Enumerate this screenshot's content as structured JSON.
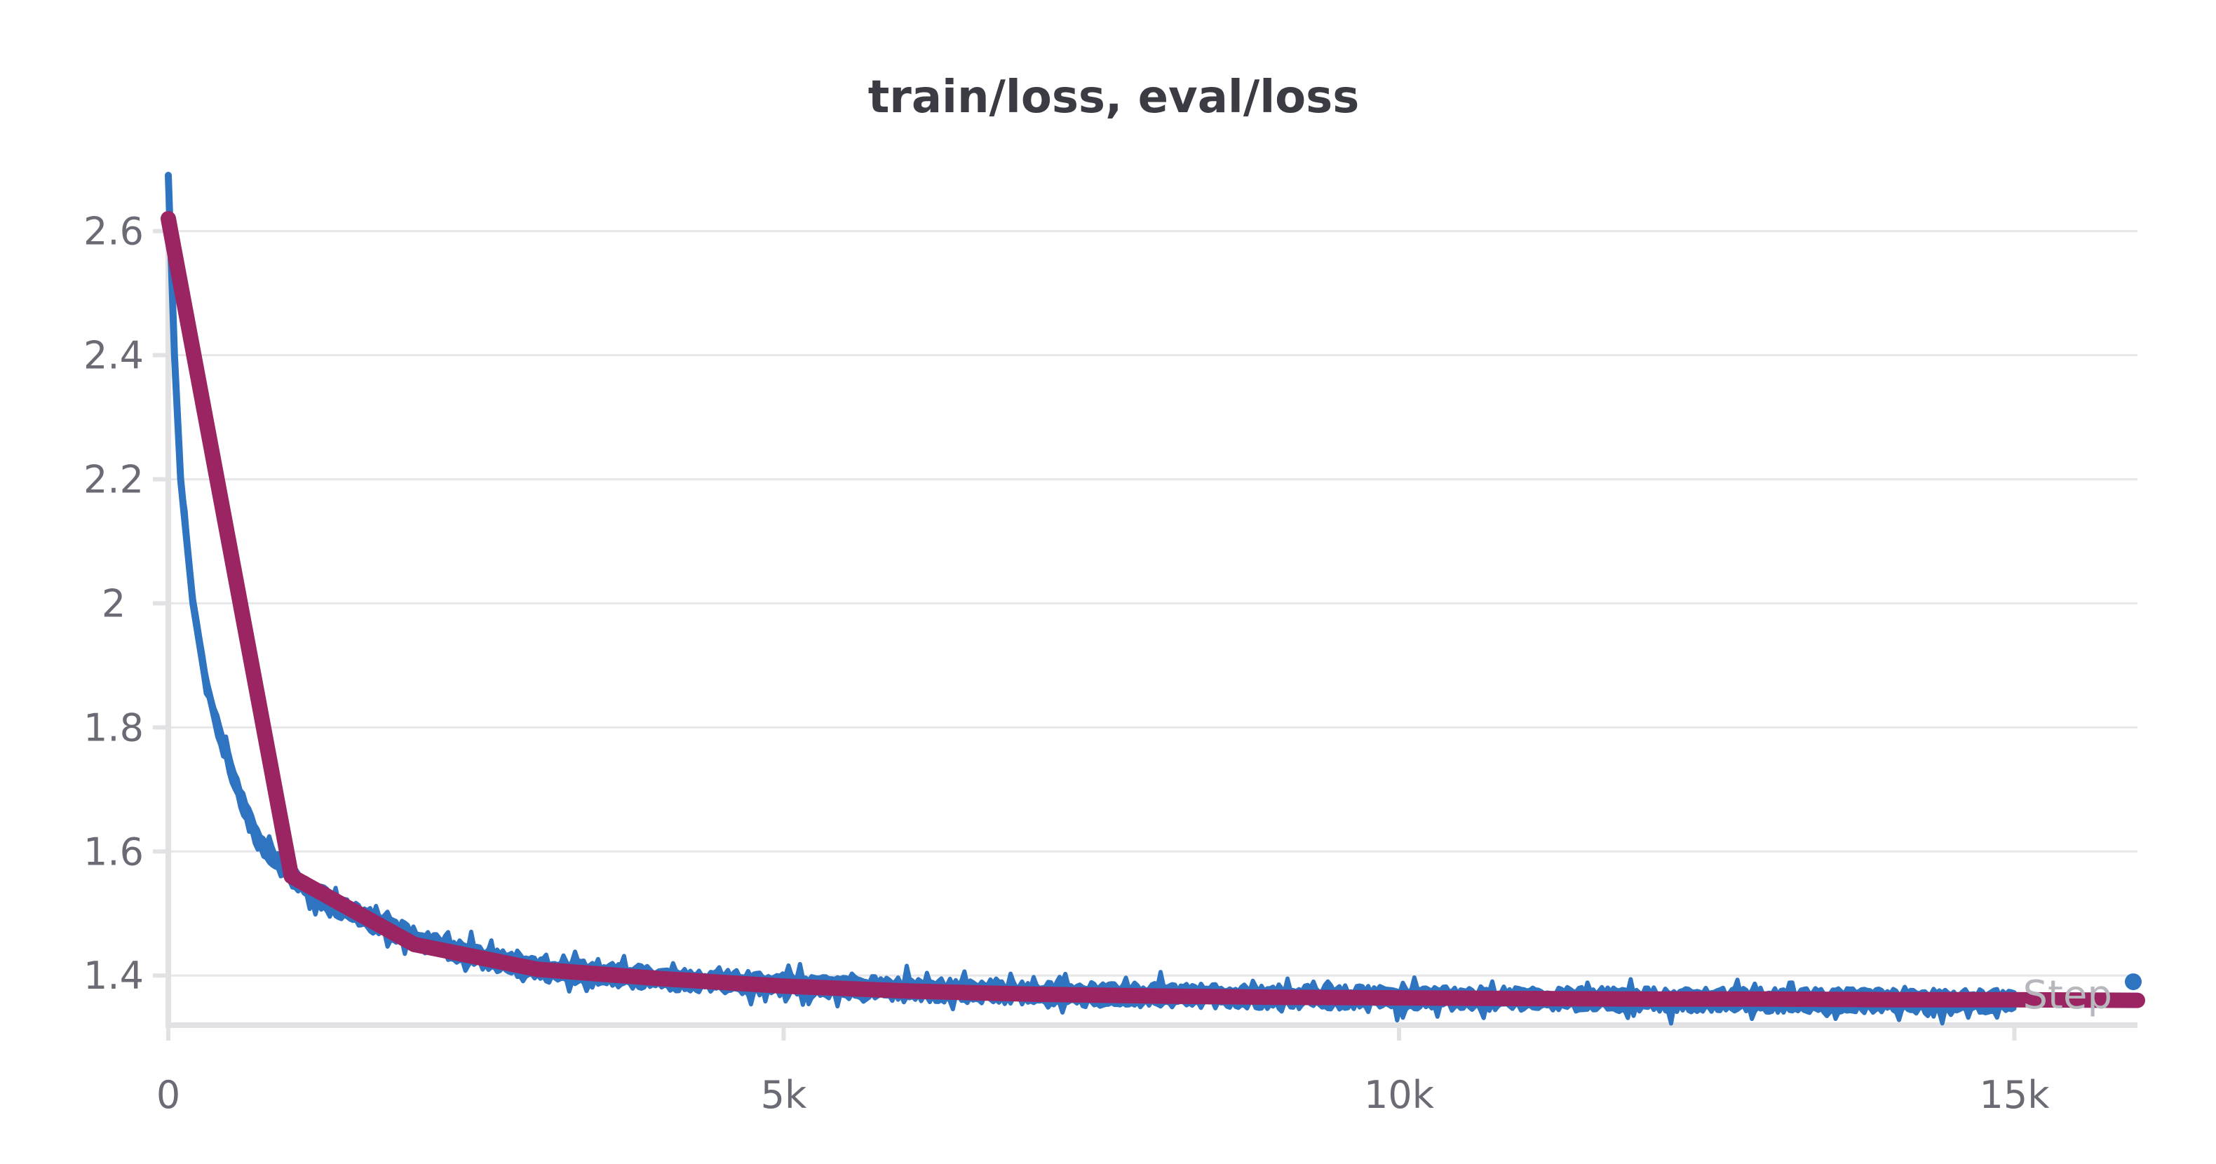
{
  "chart_data": {
    "type": "line",
    "title": "train/loss, eval/loss",
    "xlabel": "Step",
    "ylabel": "",
    "xlim": [
      0,
      16000
    ],
    "ylim": [
      1.32,
      2.69
    ],
    "x_ticks": [
      {
        "value": 0,
        "label": "0"
      },
      {
        "value": 5000,
        "label": "5k"
      },
      {
        "value": 10000,
        "label": "10k"
      },
      {
        "value": 15000,
        "label": "15k"
      }
    ],
    "y_ticks": [
      {
        "value": 1.4,
        "label": "1.4"
      },
      {
        "value": 1.6,
        "label": "1.6"
      },
      {
        "value": 1.8,
        "label": "1.8"
      },
      {
        "value": 2.0,
        "label": "2"
      },
      {
        "value": 2.2,
        "label": "2.2"
      },
      {
        "value": 2.4,
        "label": "2.4"
      },
      {
        "value": 2.6,
        "label": "2.6"
      }
    ],
    "grid": true,
    "legend": "none",
    "series": [
      {
        "key": "train_loss",
        "color": "#2f74c0",
        "style": "noisy-band",
        "x": [
          0,
          50,
          100,
          200,
          300,
          400,
          500,
          600,
          700,
          800,
          1000,
          1200,
          1500,
          2000,
          2500,
          3000,
          4000,
          5000,
          6000,
          7000,
          8000,
          9000,
          10000,
          11000,
          12000,
          13000,
          14000,
          15000,
          16000
        ],
        "y": [
          2.69,
          2.4,
          2.2,
          2.0,
          1.88,
          1.8,
          1.74,
          1.68,
          1.63,
          1.6,
          1.56,
          1.53,
          1.5,
          1.46,
          1.43,
          1.41,
          1.395,
          1.385,
          1.378,
          1.372,
          1.368,
          1.366,
          1.364,
          1.362,
          1.361,
          1.36,
          1.359,
          1.358,
          1.39
        ]
      },
      {
        "key": "eval_loss",
        "color": "#9b2462",
        "style": "line",
        "x": [
          0,
          1000,
          2000,
          3000,
          4000,
          5000,
          6000,
          7000,
          8000,
          9000,
          10000,
          11000,
          12000,
          13000,
          14000,
          15000,
          16000
        ],
        "y": [
          2.62,
          1.56,
          1.45,
          1.41,
          1.395,
          1.383,
          1.375,
          1.37,
          1.367,
          1.365,
          1.364,
          1.363,
          1.362,
          1.362,
          1.361,
          1.361,
          1.36
        ]
      }
    ]
  }
}
